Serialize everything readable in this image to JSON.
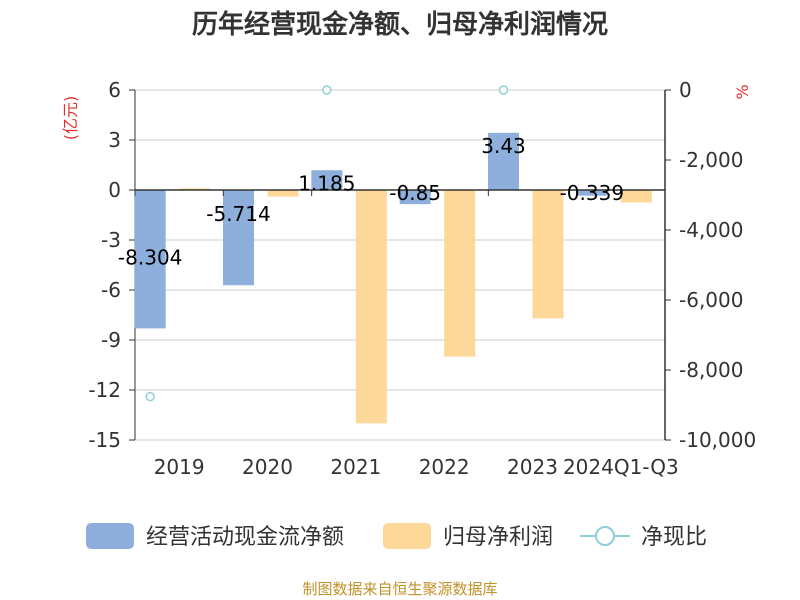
{
  "title": "历年经营现金净额、归母净利润情况",
  "source": "制图数据来自恒生聚源数据库",
  "chart_data": {
    "type": "bar",
    "categories": [
      "2019",
      "2020",
      "2021",
      "2022",
      "2023",
      "2024Q1-Q3"
    ],
    "series": [
      {
        "name": "经营活动现金流净额",
        "kind": "bar",
        "axis": "left",
        "color": "#8eaedb",
        "values": [
          -8.304,
          -5.714,
          1.185,
          -0.85,
          3.43,
          -0.339
        ],
        "labels": [
          "-8.304",
          "-5.714",
          "1.185",
          "-0.85",
          "3.43",
          "-0.339"
        ]
      },
      {
        "name": "归母净利润",
        "kind": "bar",
        "axis": "left",
        "color": "#fdd898",
        "values": [
          0.1,
          -0.4,
          -14.0,
          -10.0,
          -7.7,
          -0.75
        ]
      },
      {
        "name": "净现比",
        "kind": "scatter",
        "axis": "right",
        "color": "#8fd0d8",
        "values": [
          -8760,
          null,
          0,
          null,
          0,
          null
        ]
      }
    ],
    "left_axis": {
      "unit": "(亿元)",
      "min": -15,
      "max": 6,
      "ticks": [
        6,
        3,
        0,
        -3,
        -6,
        -9,
        -12,
        -15
      ],
      "tick_labels": [
        "6",
        "3",
        "0",
        "-3",
        "-6",
        "-9",
        "-12",
        "-15"
      ]
    },
    "right_axis": {
      "unit": "%",
      "min": -10000,
      "max": 0,
      "ticks": [
        0,
        -2000,
        -4000,
        -6000,
        -8000,
        -10000
      ],
      "tick_labels": [
        "0",
        "-2,000",
        "-4,000",
        "-6,000",
        "-8,000",
        "-10,000"
      ]
    },
    "grid": true,
    "legend_position": "bottom"
  }
}
